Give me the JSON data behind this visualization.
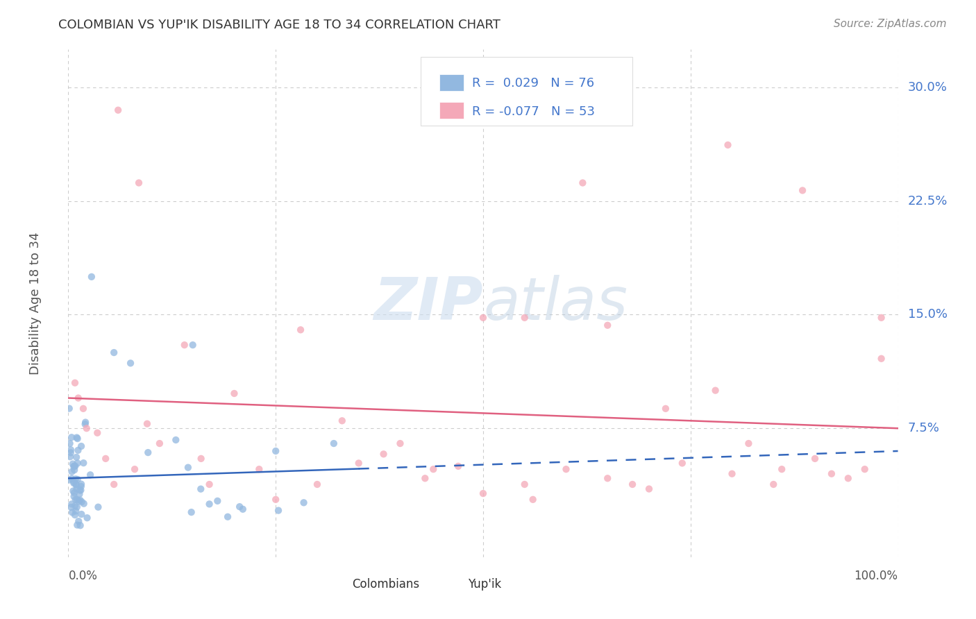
{
  "title": "COLOMBIAN VS YUP'IK DISABILITY AGE 18 TO 34 CORRELATION CHART",
  "source": "Source: ZipAtlas.com",
  "ylabel": "Disability Age 18 to 34",
  "xlim": [
    0,
    1.0
  ],
  "ylim": [
    -0.01,
    0.325
  ],
  "yticks": [
    0.075,
    0.15,
    0.225,
    0.3
  ],
  "ytick_labels": [
    "7.5%",
    "15.0%",
    "22.5%",
    "30.0%"
  ],
  "colombians_color": "#92b8e0",
  "yupik_color": "#f4a8b8",
  "trend_colombian_color": "#3366bb",
  "trend_yupik_color": "#e06080",
  "R_colombian": 0.029,
  "N_colombian": 76,
  "R_yupik": -0.077,
  "N_yupik": 53,
  "background_color": "#ffffff",
  "grid_color": "#cccccc",
  "legend_label_colombian": "Colombians",
  "legend_label_yupik": "Yup'ik",
  "axis_text_color": "#4477cc",
  "title_color": "#333333",
  "source_color": "#888888",
  "ylabel_color": "#555555",
  "xticklabel_color": "#555555"
}
